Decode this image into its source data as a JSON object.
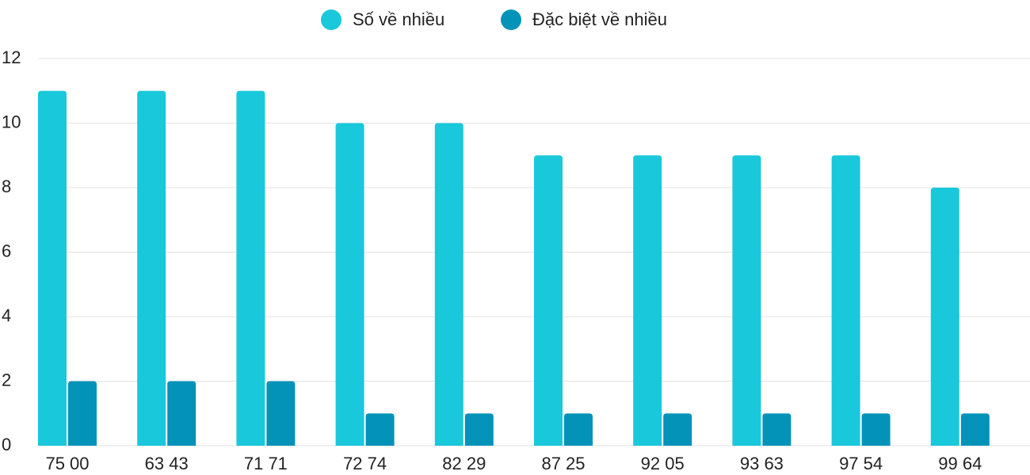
{
  "chart_data": {
    "type": "bar",
    "categories": [
      "75 00",
      "63 43",
      "71 71",
      "72 74",
      "82 29",
      "87 25",
      "92 05",
      "93 63",
      "97 54",
      "99 64"
    ],
    "series": [
      {
        "name": "Số về nhiều",
        "color": "#1ac8db",
        "values": [
          11,
          11,
          11,
          10,
          10,
          9,
          9,
          9,
          9,
          8
        ]
      },
      {
        "name": "Đặc biệt về nhiều",
        "color": "#0393b8",
        "values": [
          2,
          2,
          2,
          1,
          1,
          1,
          1,
          1,
          1,
          1
        ]
      }
    ],
    "ylim": [
      0,
      12
    ],
    "yticks": [
      0,
      2,
      4,
      6,
      8,
      10,
      12
    ],
    "grid": true,
    "legend": "top"
  }
}
